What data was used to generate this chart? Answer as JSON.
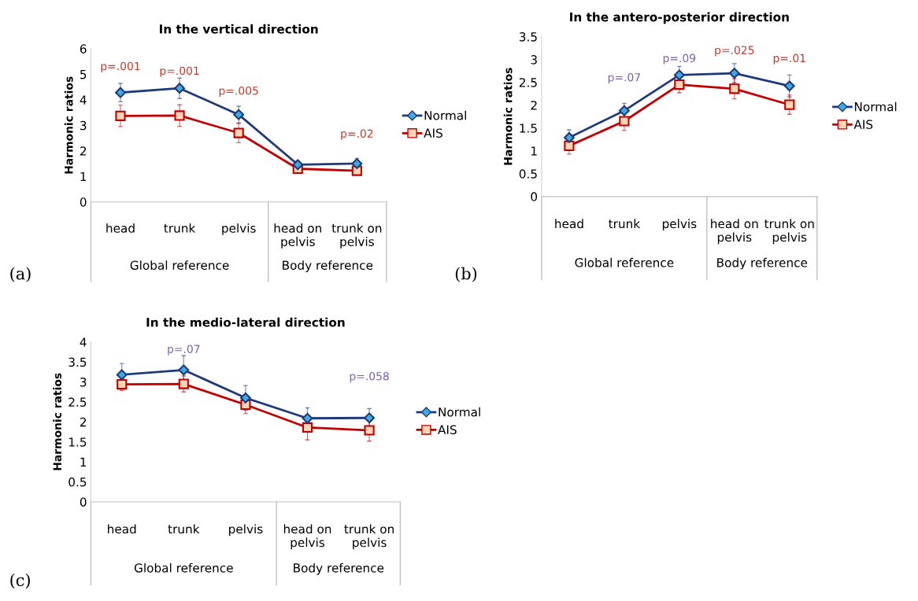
{
  "chart_data": [
    {
      "type": "line",
      "title": "In the vertical direction",
      "ylabel": "Harmonic ratios",
      "categories": [
        "head",
        "trunk",
        "pelvis",
        "head on\npelvis",
        "trunk on\npelvis"
      ],
      "series": [
        {
          "name": "Normal",
          "color": "#1f3a7a",
          "marker": "diamond",
          "values": [
            4.28,
            4.45,
            3.42,
            1.46,
            1.5
          ],
          "errors": [
            0.36,
            0.4,
            0.33,
            0.15,
            0.2
          ]
        },
        {
          "name": "AIS",
          "color": "#c00000",
          "marker": "square",
          "values": [
            3.37,
            3.38,
            2.7,
            1.3,
            1.22
          ],
          "errors": [
            0.42,
            0.42,
            0.38,
            0.1,
            0.1
          ]
        }
      ],
      "ylim": [
        0,
        6
      ],
      "yticks": [
        0,
        1,
        2,
        3,
        4,
        5,
        6
      ],
      "legend": "right",
      "grid": false,
      "annotations": [
        "(a)",
        "Global reference",
        "Body reference",
        "p=.001",
        "p=.001",
        "p=.005",
        "p=.02"
      ]
    },
    {
      "type": "line",
      "title": "In the antero-posterior direction",
      "ylabel": "Harmonic ratios",
      "categories": [
        "head",
        "trunk",
        "pelvis",
        "head on\npelvis",
        "trunk on\npelvis"
      ],
      "series": [
        {
          "name": "Normal",
          "color": "#1f3a7a",
          "marker": "diamond",
          "values": [
            1.29,
            1.88,
            2.66,
            2.7,
            2.42
          ],
          "errors": [
            0.17,
            0.16,
            0.19,
            0.21,
            0.24
          ]
        },
        {
          "name": "AIS",
          "color": "#c00000",
          "marker": "square",
          "values": [
            1.11,
            1.65,
            2.45,
            2.36,
            2.01
          ],
          "errors": [
            0.18,
            0.2,
            0.18,
            0.22,
            0.21
          ]
        }
      ],
      "ylim": [
        0,
        3.5
      ],
      "yticks": [
        0,
        0.5,
        1,
        1.5,
        2,
        2.5,
        3,
        3.5
      ],
      "legend": "right",
      "grid": false,
      "annotations": [
        "(b)",
        "Global reference",
        "Body reference",
        "p=.07",
        "p=.09",
        "p=.025",
        "p=.01"
      ]
    },
    {
      "type": "line",
      "title": "In the medio-lateral direction",
      "ylabel": "Harmonic ratios",
      "categories": [
        "head",
        "trunk",
        "pelvis",
        "head on\npelvis",
        "trunk on\npelvis"
      ],
      "series": [
        {
          "name": "Normal",
          "color": "#1f3a7a",
          "marker": "diamond",
          "values": [
            3.18,
            3.3,
            2.6,
            2.09,
            2.1
          ],
          "errors": [
            0.28,
            0.36,
            0.31,
            0.26,
            0.23
          ]
        },
        {
          "name": "AIS",
          "color": "#c00000",
          "marker": "square",
          "values": [
            2.94,
            2.95,
            2.43,
            1.86,
            1.79
          ],
          "errors": [
            0.15,
            0.2,
            0.22,
            0.31,
            0.27
          ]
        }
      ],
      "ylim": [
        0,
        4
      ],
      "yticks": [
        0,
        0.5,
        1,
        1.5,
        2,
        2.5,
        3,
        3.5,
        4
      ],
      "legend": "right",
      "grid": false,
      "annotations": [
        "(c)",
        "Global reference",
        "Body reference",
        "p=.07",
        "p=.058"
      ]
    }
  ]
}
